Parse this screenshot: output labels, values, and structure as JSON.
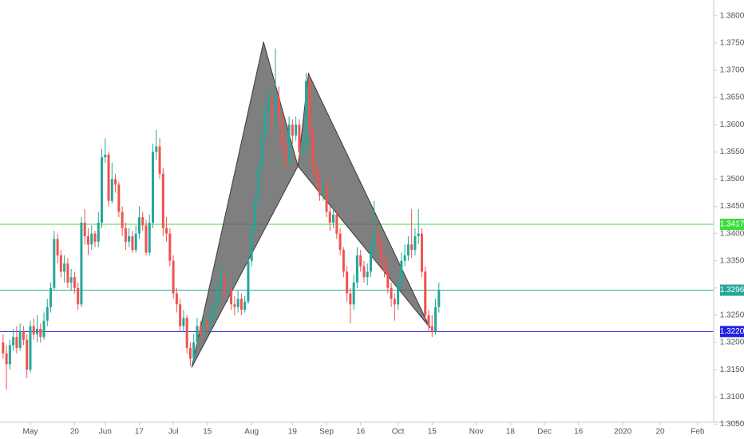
{
  "chart_data": {
    "type": "candlestick",
    "up_color": "#26a69a",
    "down_color": "#ef5350",
    "pattern_color": "#5b5b5b",
    "xlim": [
      -8.9,
      200.7
    ],
    "ylim": [
      1.3052,
      1.3829
    ],
    "xticks": [
      {
        "value": 0,
        "label": "May"
      },
      {
        "value": 13,
        "label": "20"
      },
      {
        "value": 22,
        "label": "Jun"
      },
      {
        "value": 32,
        "label": "17"
      },
      {
        "value": 42,
        "label": "Jul"
      },
      {
        "value": 52,
        "label": "15"
      },
      {
        "value": 65,
        "label": "Aug"
      },
      {
        "value": 77,
        "label": "19"
      },
      {
        "value": 87,
        "label": "Sep"
      },
      {
        "value": 97,
        "label": "16"
      },
      {
        "value": 108,
        "label": "Oct"
      },
      {
        "value": 118,
        "label": "15"
      },
      {
        "value": 131,
        "label": "Nov"
      },
      {
        "value": 141,
        "label": "18"
      },
      {
        "value": 151,
        "label": "Dec"
      },
      {
        "value": 161,
        "label": "16"
      },
      {
        "value": 174,
        "label": "2020"
      },
      {
        "value": 185,
        "label": "20"
      },
      {
        "value": 196,
        "label": "Feb"
      }
    ],
    "yticks": [
      {
        "value": 1.305,
        "label": "1.3050"
      },
      {
        "value": 1.31,
        "label": "1.3100"
      },
      {
        "value": 1.315,
        "label": "1.3150"
      },
      {
        "value": 1.32,
        "label": "1.3200"
      },
      {
        "value": 1.325,
        "label": "1.3250"
      },
      {
        "value": 1.33,
        "label": "1.3300"
      },
      {
        "value": 1.335,
        "label": "1.3350"
      },
      {
        "value": 1.34,
        "label": "1.3400"
      },
      {
        "value": 1.345,
        "label": "1.3450"
      },
      {
        "value": 1.35,
        "label": "1.3500"
      },
      {
        "value": 1.355,
        "label": "1.3550"
      },
      {
        "value": 1.36,
        "label": "1.3600"
      },
      {
        "value": 1.365,
        "label": "1.3650"
      },
      {
        "value": 1.37,
        "label": "1.3700"
      },
      {
        "value": 1.375,
        "label": "1.3750"
      },
      {
        "value": 1.38,
        "label": "1.3800"
      }
    ],
    "levels": [
      {
        "value": 1.3417,
        "label": "1.3417",
        "color": "#3ddc3d"
      },
      {
        "value": 1.3296,
        "label": "1.3296",
        "color": "#26a69a"
      },
      {
        "value": 1.322,
        "label": "1.3220",
        "color": "#2020e0"
      }
    ],
    "pattern": [
      {
        "x": 47.4,
        "y": 1.3154
      },
      {
        "x": 68.5,
        "y": 1.3752
      },
      {
        "x": 78.6,
        "y": 1.3524
      },
      {
        "x": 81.7,
        "y": 1.3694
      },
      {
        "x": 117.4,
        "y": 1.3227
      }
    ],
    "candles": [
      [
        -8,
        1.32,
        1.3215,
        1.317,
        1.318
      ],
      [
        -7,
        1.318,
        1.3195,
        1.3113,
        1.316
      ],
      [
        -6,
        1.316,
        1.3205,
        1.315,
        1.3195
      ],
      [
        -5,
        1.3195,
        1.3225,
        1.3185,
        1.321
      ],
      [
        -4,
        1.321,
        1.323,
        1.318,
        1.319
      ],
      [
        -3,
        1.319,
        1.3235,
        1.3185,
        1.322
      ],
      [
        -2,
        1.322,
        1.323,
        1.3195,
        1.3205
      ],
      [
        -1,
        1.3205,
        1.3215,
        1.3135,
        1.315
      ],
      [
        0,
        1.315,
        1.324,
        1.3145,
        1.323
      ],
      [
        1,
        1.323,
        1.3245,
        1.3205,
        1.3215
      ],
      [
        2,
        1.3215,
        1.325,
        1.32,
        1.3225
      ],
      [
        3,
        1.3225,
        1.3235,
        1.32,
        1.321
      ],
      [
        4,
        1.321,
        1.3255,
        1.3205,
        1.324
      ],
      [
        5,
        1.324,
        1.328,
        1.323,
        1.3265
      ],
      [
        6,
        1.3265,
        1.331,
        1.3255,
        1.33
      ],
      [
        7,
        1.33,
        1.3405,
        1.3295,
        1.339
      ],
      [
        8,
        1.339,
        1.34,
        1.3345,
        1.336
      ],
      [
        9,
        1.336,
        1.337,
        1.332,
        1.333
      ],
      [
        10,
        1.333,
        1.336,
        1.331,
        1.3345
      ],
      [
        11,
        1.3345,
        1.3355,
        1.33,
        1.331
      ],
      [
        12,
        1.331,
        1.3335,
        1.3295,
        1.332
      ],
      [
        13,
        1.332,
        1.333,
        1.329,
        1.33
      ],
      [
        14,
        1.33,
        1.331,
        1.326,
        1.327
      ],
      [
        15,
        1.327,
        1.343,
        1.3265,
        1.342
      ],
      [
        16,
        1.342,
        1.3445,
        1.338,
        1.3395
      ],
      [
        17,
        1.3395,
        1.341,
        1.336,
        1.338
      ],
      [
        18,
        1.338,
        1.3415,
        1.337,
        1.34
      ],
      [
        19,
        1.34,
        1.3405,
        1.3375,
        1.3385
      ],
      [
        20,
        1.3385,
        1.344,
        1.3375,
        1.342
      ],
      [
        21,
        1.342,
        1.3555,
        1.341,
        1.354
      ],
      [
        22,
        1.354,
        1.3575,
        1.353,
        1.3545
      ],
      [
        23,
        1.3545,
        1.355,
        1.345,
        1.346
      ],
      [
        24,
        1.346,
        1.353,
        1.3455,
        1.35
      ],
      [
        25,
        1.35,
        1.351,
        1.3475,
        1.349
      ],
      [
        26,
        1.349,
        1.3495,
        1.343,
        1.344
      ],
      [
        27,
        1.344,
        1.345,
        1.3395,
        1.341
      ],
      [
        28,
        1.341,
        1.342,
        1.337,
        1.3385
      ],
      [
        29,
        1.3385,
        1.341,
        1.3375,
        1.3395
      ],
      [
        30,
        1.3395,
        1.3405,
        1.3365,
        1.337
      ],
      [
        31,
        1.337,
        1.3415,
        1.3365,
        1.34
      ],
      [
        32,
        1.34,
        1.345,
        1.339,
        1.343
      ],
      [
        33,
        1.343,
        1.344,
        1.3405,
        1.3415
      ],
      [
        34,
        1.3415,
        1.3425,
        1.336,
        1.3365
      ],
      [
        35,
        1.3365,
        1.3435,
        1.336,
        1.342
      ],
      [
        36,
        1.342,
        1.3565,
        1.341,
        1.355
      ],
      [
        37,
        1.355,
        1.359,
        1.3535,
        1.356
      ],
      [
        38,
        1.356,
        1.3575,
        1.35,
        1.351
      ],
      [
        39,
        1.351,
        1.352,
        1.3395,
        1.341
      ],
      [
        40,
        1.341,
        1.343,
        1.3385,
        1.34
      ],
      [
        41,
        1.34,
        1.341,
        1.334,
        1.335
      ],
      [
        42,
        1.335,
        1.336,
        1.328,
        1.329
      ],
      [
        43,
        1.329,
        1.33,
        1.3255,
        1.327
      ],
      [
        44,
        1.327,
        1.328,
        1.322,
        1.323
      ],
      [
        45,
        1.323,
        1.326,
        1.322,
        1.3245
      ],
      [
        46,
        1.3245,
        1.325,
        1.318,
        1.319
      ],
      [
        47,
        1.319,
        1.32,
        1.3157,
        1.317
      ],
      [
        48,
        1.317,
        1.3215,
        1.3165,
        1.32
      ],
      [
        49,
        1.32,
        1.3245,
        1.3195,
        1.323
      ],
      [
        50,
        1.323,
        1.324,
        1.3205,
        1.3215
      ],
      [
        51,
        1.3215,
        1.3255,
        1.321,
        1.324
      ],
      [
        52,
        1.324,
        1.3245,
        1.3215,
        1.3225
      ],
      [
        53,
        1.3225,
        1.3265,
        1.322,
        1.325
      ],
      [
        54,
        1.325,
        1.3285,
        1.324,
        1.327
      ],
      [
        55,
        1.327,
        1.3315,
        1.3265,
        1.33
      ],
      [
        56,
        1.33,
        1.334,
        1.329,
        1.332
      ],
      [
        57,
        1.332,
        1.3325,
        1.328,
        1.329
      ],
      [
        58,
        1.329,
        1.331,
        1.3275,
        1.33
      ],
      [
        59,
        1.33,
        1.3305,
        1.326,
        1.327
      ],
      [
        60,
        1.327,
        1.3285,
        1.325,
        1.3265
      ],
      [
        61,
        1.3265,
        1.3295,
        1.3255,
        1.328
      ],
      [
        62,
        1.328,
        1.329,
        1.325,
        1.326
      ],
      [
        63,
        1.326,
        1.3285,
        1.3255,
        1.3275
      ],
      [
        64,
        1.3275,
        1.336,
        1.327,
        1.335
      ],
      [
        65,
        1.335,
        1.342,
        1.334,
        1.341
      ],
      [
        66,
        1.341,
        1.347,
        1.34,
        1.346
      ],
      [
        67,
        1.346,
        1.3535,
        1.345,
        1.352
      ],
      [
        68,
        1.352,
        1.36,
        1.351,
        1.358
      ],
      [
        69,
        1.358,
        1.365,
        1.357,
        1.362
      ],
      [
        70,
        1.362,
        1.3665,
        1.36,
        1.364
      ],
      [
        71,
        1.364,
        1.3655,
        1.3585,
        1.36
      ],
      [
        72,
        1.36,
        1.374,
        1.359,
        1.365
      ],
      [
        73,
        1.365,
        1.367,
        1.3595,
        1.361
      ],
      [
        74,
        1.361,
        1.3625,
        1.3545,
        1.356
      ],
      [
        75,
        1.356,
        1.3575,
        1.352,
        1.353
      ],
      [
        76,
        1.353,
        1.3615,
        1.3525,
        1.36
      ],
      [
        77,
        1.36,
        1.361,
        1.3565,
        1.358
      ],
      [
        78,
        1.358,
        1.3615,
        1.357,
        1.36
      ],
      [
        79,
        1.36,
        1.361,
        1.3535,
        1.355
      ],
      [
        80,
        1.355,
        1.358,
        1.354,
        1.356
      ],
      [
        81,
        1.356,
        1.3695,
        1.355,
        1.368
      ],
      [
        82,
        1.368,
        1.369,
        1.358,
        1.359
      ],
      [
        83,
        1.359,
        1.36,
        1.3505,
        1.352
      ],
      [
        84,
        1.352,
        1.353,
        1.3485,
        1.35
      ],
      [
        85,
        1.35,
        1.3515,
        1.346,
        1.347
      ],
      [
        86,
        1.347,
        1.3505,
        1.346,
        1.349
      ],
      [
        87,
        1.349,
        1.35,
        1.343,
        1.344
      ],
      [
        88,
        1.344,
        1.345,
        1.3405,
        1.342
      ],
      [
        89,
        1.342,
        1.345,
        1.341,
        1.3435
      ],
      [
        90,
        1.3435,
        1.3445,
        1.339,
        1.34
      ],
      [
        91,
        1.34,
        1.341,
        1.336,
        1.337
      ],
      [
        92,
        1.337,
        1.3375,
        1.332,
        1.333
      ],
      [
        93,
        1.333,
        1.334,
        1.3275,
        1.329
      ],
      [
        94,
        1.329,
        1.33,
        1.3235,
        1.327
      ],
      [
        95,
        1.327,
        1.3325,
        1.326,
        1.331
      ],
      [
        96,
        1.331,
        1.3375,
        1.33,
        1.336
      ],
      [
        97,
        1.336,
        1.337,
        1.333,
        1.334
      ],
      [
        98,
        1.334,
        1.335,
        1.331,
        1.332
      ],
      [
        99,
        1.332,
        1.3345,
        1.3305,
        1.333
      ],
      [
        100,
        1.333,
        1.3385,
        1.332,
        1.337
      ],
      [
        101,
        1.337,
        1.346,
        1.336,
        1.34
      ],
      [
        102,
        1.34,
        1.341,
        1.3365,
        1.338
      ],
      [
        103,
        1.338,
        1.339,
        1.334,
        1.335
      ],
      [
        104,
        1.335,
        1.336,
        1.332,
        1.333
      ],
      [
        105,
        1.333,
        1.334,
        1.329,
        1.33
      ],
      [
        106,
        1.33,
        1.331,
        1.3265,
        1.328
      ],
      [
        107,
        1.328,
        1.329,
        1.324,
        1.327
      ],
      [
        108,
        1.327,
        1.3325,
        1.326,
        1.331
      ],
      [
        109,
        1.331,
        1.3365,
        1.33,
        1.335
      ],
      [
        110,
        1.335,
        1.338,
        1.334,
        1.336
      ],
      [
        111,
        1.336,
        1.3395,
        1.335,
        1.338
      ],
      [
        112,
        1.338,
        1.3445,
        1.3355,
        1.337
      ],
      [
        113,
        1.337,
        1.341,
        1.336,
        1.3395
      ],
      [
        114,
        1.3395,
        1.3445,
        1.338,
        1.34
      ],
      [
        115,
        1.34,
        1.341,
        1.332,
        1.333
      ],
      [
        116,
        1.333,
        1.334,
        1.324,
        1.325
      ],
      [
        117,
        1.325,
        1.326,
        1.322,
        1.323
      ],
      [
        118,
        1.323,
        1.325,
        1.321,
        1.322
      ],
      [
        119,
        1.322,
        1.328,
        1.3215,
        1.3265
      ],
      [
        120,
        1.3265,
        1.331,
        1.3255,
        1.3296
      ]
    ]
  }
}
